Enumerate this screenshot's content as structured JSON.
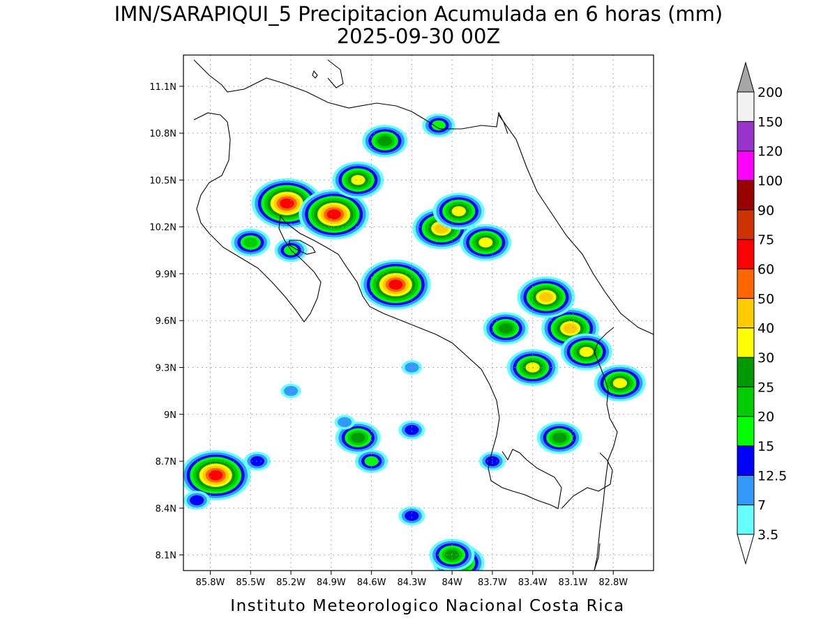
{
  "title": {
    "line1": "IMN/SARAPIQUI_5 Precipitacion Acumulada en 6 horas (mm)",
    "line2": "2025-09-30 00Z"
  },
  "footer": "Instituto Meteorologico Nacional Costa Rica",
  "map": {
    "lat_ticks": [
      "11.1N",
      "10.8N",
      "10.5N",
      "10.2N",
      "9.9N",
      "9.6N",
      "9.3N",
      "9N",
      "8.7N",
      "8.4N",
      "8.1N"
    ],
    "lon_ticks": [
      "85.8W",
      "85.5W",
      "85.2W",
      "84.9W",
      "84.6W",
      "84.3W",
      "84W",
      "83.7W",
      "83.4W",
      "83.1W",
      "82.8W"
    ],
    "grid": "dotted"
  },
  "colorbar": {
    "labels": [
      "3.5",
      "7",
      "12.5",
      "15",
      "20",
      "25",
      "30",
      "40",
      "50",
      "60",
      "75",
      "90",
      "100",
      "120",
      "150",
      "200"
    ],
    "colors": [
      "#66ffff",
      "#3399ff",
      "#0000ff",
      "#00ff00",
      "#00cc00",
      "#009900",
      "#ffff00",
      "#ffcc00",
      "#ff6600",
      "#ff0000",
      "#cc3300",
      "#990000",
      "#ff00ff",
      "#9933cc",
      "#f2f2f2",
      "#a6a6a6"
    ]
  },
  "chart_data": {
    "type": "heatmap",
    "variable": "Precipitacion Acumulada en 6 horas (mm)",
    "valid_time": "2025-09-30 00Z",
    "lon_range_W": [
      86.0,
      82.5
    ],
    "lat_range_N": [
      8.0,
      11.3
    ],
    "cells": [
      {
        "lon": -85.23,
        "lat": 10.35,
        "value": 65
      },
      {
        "lon": -84.88,
        "lat": 10.28,
        "value": 62
      },
      {
        "lon": -84.42,
        "lat": 9.83,
        "value": 62
      },
      {
        "lon": -85.76,
        "lat": 8.61,
        "value": 60
      },
      {
        "lon": -84.08,
        "lat": 10.19,
        "value": 45
      },
      {
        "lon": -83.12,
        "lat": 9.55,
        "value": 45
      },
      {
        "lon": -83.3,
        "lat": 9.75,
        "value": 40
      },
      {
        "lon": -84.7,
        "lat": 10.5,
        "value": 35
      },
      {
        "lon": -82.75,
        "lat": 9.2,
        "value": 35
      },
      {
        "lon": -83.95,
        "lat": 8.05,
        "value": 35
      },
      {
        "lon": -83.95,
        "lat": 10.3,
        "value": 35
      },
      {
        "lon": -83.4,
        "lat": 9.3,
        "value": 30
      },
      {
        "lon": -83.0,
        "lat": 9.4,
        "value": 30
      },
      {
        "lon": -83.75,
        "lat": 10.1,
        "value": 30
      },
      {
        "lon": -84.5,
        "lat": 10.75,
        "value": 25
      },
      {
        "lon": -84.0,
        "lat": 8.1,
        "value": 25
      },
      {
        "lon": -84.7,
        "lat": 8.85,
        "value": 25
      },
      {
        "lon": -83.2,
        "lat": 8.85,
        "value": 25
      },
      {
        "lon": -83.6,
        "lat": 9.55,
        "value": 25
      },
      {
        "lon": -85.5,
        "lat": 10.1,
        "value": 20
      },
      {
        "lon": -84.1,
        "lat": 10.85,
        "value": 15
      },
      {
        "lon": -85.2,
        "lat": 10.05,
        "value": 15
      },
      {
        "lon": -84.6,
        "lat": 8.7,
        "value": 15
      },
      {
        "lon": -85.45,
        "lat": 8.7,
        "value": 12.5
      },
      {
        "lon": -84.3,
        "lat": 8.9,
        "value": 12.5
      },
      {
        "lon": -84.3,
        "lat": 8.35,
        "value": 12.5
      },
      {
        "lon": -83.7,
        "lat": 8.7,
        "value": 12.5
      },
      {
        "lon": -85.9,
        "lat": 8.45,
        "value": 12.5
      },
      {
        "lon": -84.8,
        "lat": 8.95,
        "value": 7
      },
      {
        "lon": -85.2,
        "lat": 9.15,
        "value": 7
      },
      {
        "lon": -84.3,
        "lat": 9.3,
        "value": 7
      }
    ]
  }
}
